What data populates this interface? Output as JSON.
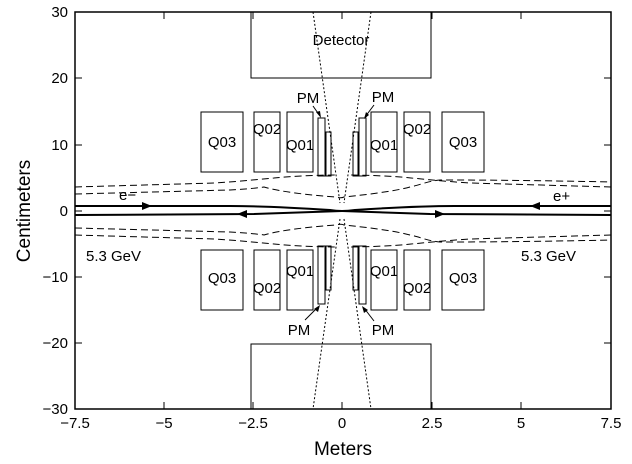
{
  "axes": {
    "x_title": "Meters",
    "y_title": "Centimeters",
    "x_ticks": [
      "−7.5",
      "−5",
      "−2.5",
      "0",
      "2.5",
      "5",
      "7.5"
    ],
    "y_ticks": [
      "30",
      "20",
      "10",
      "0",
      "−10",
      "−20",
      "−30"
    ]
  },
  "labels": {
    "detector": "Detector",
    "pm": "PM",
    "q01": "Q01",
    "q02": "Q02",
    "q03": "Q03",
    "electron": "e−",
    "positron": "e+",
    "energy": "5.3 GeV"
  }
}
